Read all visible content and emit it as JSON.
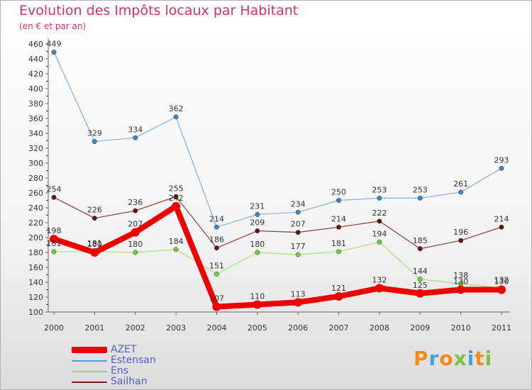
{
  "header": {
    "title": "Evolution des Impôts locaux par Habitant",
    "subtitle": "(en € et par an)"
  },
  "logo": {
    "text": "Proxiti"
  },
  "colors": {
    "title": "#d0326e",
    "axis_text": "#333333",
    "legend_text": "#5560c8"
  },
  "chart_data": {
    "type": "line",
    "title": "Evolution des Impôts locaux par Habitant",
    "subtitle": "(en € et par an)",
    "xlabel": "",
    "ylabel": "",
    "x": [
      "2000",
      "2001",
      "2002",
      "2003",
      "2004",
      "2005",
      "2006",
      "2007",
      "2008",
      "2009",
      "2010",
      "2011"
    ],
    "ylim": [
      100,
      460
    ],
    "yticks": [
      100,
      120,
      140,
      160,
      180,
      200,
      220,
      240,
      260,
      280,
      300,
      320,
      340,
      360,
      380,
      400,
      420,
      440,
      460
    ],
    "grid": false,
    "legend_position": "bottom-left",
    "series": [
      {
        "name": "AZET",
        "color": "#ee0000",
        "values": [
          198,
          180,
          207,
          242,
          107,
          110,
          113,
          121,
          132,
          125,
          130,
          130
        ],
        "labels": [
          "198",
          "180",
          "207",
          "242",
          "107",
          "110",
          "113",
          "121",
          "132",
          "125",
          "130",
          "130"
        ]
      },
      {
        "name": "Estensan",
        "color": "#5b9bd5",
        "values": [
          449,
          329,
          334,
          362,
          214,
          231,
          234,
          250,
          253,
          253,
          261,
          293
        ],
        "labels": [
          "449",
          "329",
          "334",
          "362",
          "214",
          "231",
          "234",
          "250",
          "253",
          "253",
          "261",
          "293"
        ]
      },
      {
        "name": "Ens",
        "color": "#88dd55",
        "values": [
          181,
          181,
          180,
          184,
          151,
          180,
          177,
          181,
          194,
          144,
          138,
          132
        ],
        "labels": [
          "181",
          "181",
          "180",
          "184",
          "151",
          "180",
          "177",
          "181",
          "194",
          "144",
          "138",
          "132"
        ]
      },
      {
        "name": "Sailhan",
        "color": "#7a1a1a",
        "values": [
          254,
          226,
          236,
          255,
          186,
          209,
          207,
          214,
          222,
          185,
          196,
          214
        ],
        "labels": [
          "254",
          "226",
          "236",
          "255",
          "186",
          "209",
          "207",
          "214",
          "222",
          "185",
          "196",
          "214"
        ]
      }
    ]
  }
}
